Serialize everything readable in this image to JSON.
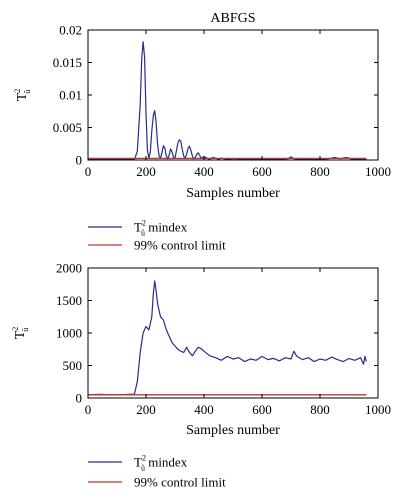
{
  "colors": {
    "index": "#2b2b8f",
    "limit": "#c0392b",
    "frame": "#000000"
  },
  "chart_data": [
    {
      "type": "line",
      "title": "ABFGS",
      "xlabel": "Samples number",
      "ylabel": {
        "base": "T",
        "sup": "2",
        "sub": "û"
      },
      "xlim": [
        0,
        1000
      ],
      "ylim": [
        0,
        0.02
      ],
      "xticks": [
        0,
        200,
        400,
        600,
        800,
        1000
      ],
      "xtick_labels": [
        "0",
        "200",
        "400",
        "600",
        "800",
        "1000"
      ],
      "yticks": [
        0,
        0.005,
        0.01,
        0.015,
        0.02
      ],
      "ytick_labels": [
        "0",
        "0.005",
        "0.01",
        "0.015",
        "0.02"
      ],
      "grid": false,
      "legend_position": "below-plot",
      "series": [
        {
          "name": "mindex",
          "legend_base": "T",
          "legend_sup": "2",
          "legend_sub": "û",
          "legend_rest": " mindex",
          "color": "#2b2b8f",
          "x": [
            0,
            160,
            170,
            180,
            185,
            190,
            195,
            200,
            205,
            210,
            215,
            220,
            225,
            230,
            235,
            240,
            245,
            250,
            255,
            260,
            265,
            270,
            275,
            280,
            285,
            290,
            295,
            300,
            305,
            310,
            315,
            320,
            325,
            330,
            335,
            340,
            345,
            350,
            355,
            360,
            365,
            370,
            375,
            380,
            385,
            390,
            400,
            410,
            420,
            430,
            440,
            450,
            460,
            480,
            500,
            550,
            600,
            650,
            690,
            700,
            710,
            730,
            800,
            830,
            850,
            870,
            890,
            900,
            910,
            930,
            960
          ],
          "y": [
            0.0001,
            0.0001,
            0.0013,
            0.0085,
            0.0155,
            0.0182,
            0.0158,
            0.0072,
            0.0015,
            0.0003,
            0.0012,
            0.0045,
            0.0068,
            0.0076,
            0.0058,
            0.0024,
            0.0006,
            0.0003,
            0.0011,
            0.0022,
            0.0018,
            0.0006,
            0.0002,
            0.0008,
            0.0017,
            0.0012,
            0.0004,
            0.0003,
            0.0014,
            0.0026,
            0.0031,
            0.0029,
            0.0016,
            0.0006,
            0.0003,
            0.0009,
            0.0018,
            0.0021,
            0.0015,
            0.0006,
            0.0002,
            0.0004,
            0.0009,
            0.0011,
            0.0007,
            0.0003,
            0.0005,
            0.0003,
            0.0001,
            0.0004,
            0.0003,
            0.0001,
            0.0003,
            0.0001,
            0.0002,
            0.0001,
            0.0001,
            0.0001,
            0.0002,
            0.0005,
            0.0002,
            0.0001,
            0.0001,
            0.0002,
            0.0004,
            0.0002,
            0.0004,
            0.0003,
            0.0001,
            0.0001,
            0.0001
          ]
        },
        {
          "name": "99% control limit",
          "legend_rest": "99% control limit",
          "color": "#c0392b",
          "x": [
            0,
            960
          ],
          "y": [
            0.00025,
            0.00025
          ]
        }
      ]
    },
    {
      "type": "line",
      "title": "",
      "xlabel": "Samples number",
      "ylabel": {
        "base": "T",
        "sup": "2",
        "sub": "ũ"
      },
      "xlim": [
        0,
        1000
      ],
      "ylim": [
        0,
        2000
      ],
      "xticks": [
        0,
        200,
        400,
        600,
        800,
        1000
      ],
      "xtick_labels": [
        "0",
        "200",
        "400",
        "600",
        "800",
        "1000"
      ],
      "yticks": [
        0,
        500,
        1000,
        1500,
        2000
      ],
      "ytick_labels": [
        "0",
        "500",
        "1000",
        "1500",
        "2000"
      ],
      "grid": false,
      "legend_position": "below-plot",
      "series": [
        {
          "name": "mindex",
          "legend_base": "T",
          "legend_sup": "2",
          "legend_sub": "ũ",
          "legend_rest": " mindex",
          "color": "#2b2b8f",
          "x": [
            0,
            40,
            80,
            120,
            160,
            170,
            180,
            190,
            200,
            210,
            220,
            225,
            230,
            235,
            240,
            250,
            260,
            270,
            280,
            290,
            300,
            310,
            320,
            330,
            340,
            350,
            360,
            370,
            380,
            390,
            400,
            420,
            440,
            460,
            480,
            500,
            520,
            540,
            560,
            580,
            600,
            620,
            640,
            660,
            680,
            700,
            710,
            720,
            740,
            760,
            780,
            800,
            820,
            840,
            860,
            880,
            900,
            920,
            940,
            950,
            955,
            960
          ],
          "y": [
            50,
            55,
            48,
            52,
            60,
            250,
            700,
            1000,
            1100,
            1050,
            1250,
            1600,
            1800,
            1650,
            1450,
            1250,
            1200,
            1050,
            950,
            850,
            800,
            750,
            720,
            700,
            780,
            700,
            650,
            720,
            780,
            760,
            720,
            650,
            620,
            580,
            640,
            600,
            620,
            560,
            600,
            580,
            640,
            590,
            610,
            570,
            620,
            600,
            720,
            640,
            590,
            620,
            560,
            600,
            580,
            630,
            590,
            560,
            610,
            580,
            620,
            520,
            640,
            560
          ]
        },
        {
          "name": "99% control limit",
          "legend_rest": "99% control limit",
          "color": "#c0392b",
          "x": [
            0,
            960
          ],
          "y": [
            50,
            50
          ]
        }
      ]
    }
  ]
}
